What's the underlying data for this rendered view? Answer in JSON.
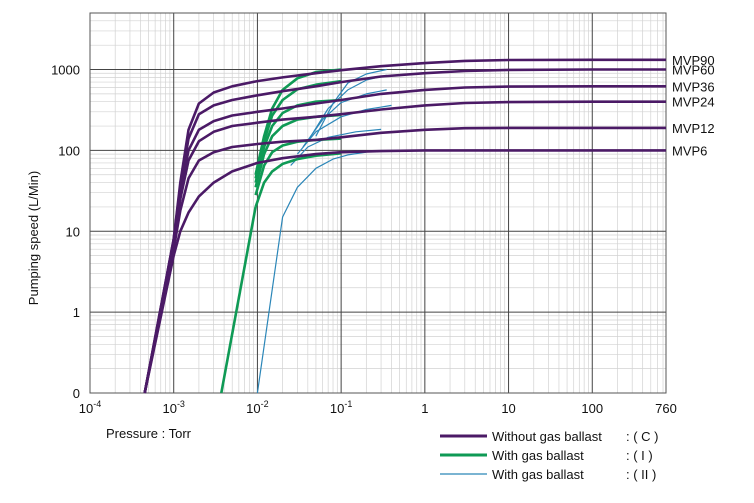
{
  "chart_data": {
    "type": "line",
    "xlabel": "Pressure : Torr",
    "ylabel": "Pumping speed (L/Min)",
    "x_scale": "log",
    "y_scale": "log",
    "xlim": [
      0.0001,
      760
    ],
    "ylim": [
      0.1,
      5000
    ],
    "x_ticks": [
      {
        "value": 0.0001,
        "base": "10",
        "exp": "-4"
      },
      {
        "value": 0.001,
        "base": "10",
        "exp": "-3"
      },
      {
        "value": 0.01,
        "base": "10",
        "exp": "-2"
      },
      {
        "value": 0.1,
        "base": "10",
        "exp": "-1"
      },
      {
        "value": 1,
        "base": "1",
        "exp": ""
      },
      {
        "value": 10,
        "base": "10",
        "exp": ""
      },
      {
        "value": 100,
        "base": "100",
        "exp": ""
      },
      {
        "value": 760,
        "base": "760",
        "exp": ""
      }
    ],
    "y_ticks": [
      {
        "value": 0.1,
        "label": "0"
      },
      {
        "value": 1,
        "label": "1"
      },
      {
        "value": 10,
        "label": "10"
      },
      {
        "value": 100,
        "label": "100"
      },
      {
        "value": 1000,
        "label": "1000"
      }
    ],
    "grid": true,
    "legend": {
      "position": "bottom-right",
      "entries": [
        {
          "key": "C",
          "label": "Without gas ballast",
          "tag": ": ( C )",
          "color": "#4b1a66"
        },
        {
          "key": "I",
          "label": "With gas ballast",
          "tag": ": ( I )",
          "color": "#0f9a55"
        },
        {
          "key": "II",
          "label": "With gas ballast",
          "tag": ": ( II )",
          "color": "#2b86b8"
        }
      ]
    },
    "series": [
      {
        "name": "MVP90",
        "c_points": [
          [
            0.00045,
            0.1
          ],
          [
            0.001,
            8
          ],
          [
            0.0012,
            40
          ],
          [
            0.0015,
            180
          ],
          [
            0.002,
            380
          ],
          [
            0.003,
            520
          ],
          [
            0.005,
            620
          ],
          [
            0.01,
            720
          ],
          [
            0.02,
            800
          ],
          [
            0.05,
            900
          ],
          [
            0.1,
            980
          ],
          [
            0.3,
            1100
          ],
          [
            1,
            1200
          ],
          [
            3,
            1280
          ],
          [
            10,
            1310
          ],
          [
            100,
            1320
          ],
          [
            760,
            1320
          ]
        ],
        "i_points": [
          [
            0.0095,
            50
          ],
          [
            0.012,
            150
          ],
          [
            0.015,
            330
          ],
          [
            0.02,
            560
          ],
          [
            0.03,
            780
          ],
          [
            0.05,
            930
          ],
          [
            0.1,
            1000
          ]
        ],
        "ii_points": [
          [
            0.05,
            150
          ],
          [
            0.08,
            380
          ],
          [
            0.12,
            680
          ],
          [
            0.2,
            880
          ],
          [
            0.35,
            1000
          ]
        ]
      },
      {
        "name": "MVP60",
        "c_points": [
          [
            0.00045,
            0.1
          ],
          [
            0.001,
            8
          ],
          [
            0.0012,
            35
          ],
          [
            0.0015,
            140
          ],
          [
            0.002,
            280
          ],
          [
            0.003,
            360
          ],
          [
            0.005,
            420
          ],
          [
            0.01,
            480
          ],
          [
            0.02,
            540
          ],
          [
            0.05,
            620
          ],
          [
            0.1,
            700
          ],
          [
            0.3,
            820
          ],
          [
            1,
            900
          ],
          [
            3,
            960
          ],
          [
            10,
            990
          ],
          [
            100,
            1000
          ],
          [
            760,
            1000
          ]
        ],
        "i_points": [
          [
            0.0095,
            45
          ],
          [
            0.012,
            130
          ],
          [
            0.015,
            270
          ],
          [
            0.02,
            420
          ],
          [
            0.03,
            570
          ],
          [
            0.05,
            650
          ],
          [
            0.1,
            720
          ]
        ],
        "ii_points": [
          [
            0.04,
            130
          ],
          [
            0.07,
            330
          ],
          [
            0.12,
            560
          ],
          [
            0.2,
            740
          ],
          [
            0.35,
            850
          ]
        ]
      },
      {
        "name": "MVP36",
        "c_points": [
          [
            0.00045,
            0.1
          ],
          [
            0.001,
            7
          ],
          [
            0.0012,
            30
          ],
          [
            0.0015,
            100
          ],
          [
            0.002,
            180
          ],
          [
            0.003,
            230
          ],
          [
            0.005,
            270
          ],
          [
            0.01,
            300
          ],
          [
            0.02,
            330
          ],
          [
            0.05,
            380
          ],
          [
            0.1,
            420
          ],
          [
            0.3,
            500
          ],
          [
            1,
            560
          ],
          [
            3,
            600
          ],
          [
            10,
            615
          ],
          [
            100,
            620
          ],
          [
            760,
            620
          ]
        ],
        "i_points": [
          [
            0.0095,
            40
          ],
          [
            0.012,
            110
          ],
          [
            0.015,
            200
          ],
          [
            0.02,
            290
          ],
          [
            0.03,
            360
          ],
          [
            0.05,
            400
          ],
          [
            0.1,
            420
          ]
        ],
        "ii_points": [
          [
            0.035,
            110
          ],
          [
            0.06,
            240
          ],
          [
            0.1,
            390
          ],
          [
            0.2,
            500
          ],
          [
            0.35,
            560
          ]
        ]
      },
      {
        "name": "MVP24",
        "c_points": [
          [
            0.00045,
            0.1
          ],
          [
            0.001,
            7
          ],
          [
            0.0012,
            25
          ],
          [
            0.0015,
            75
          ],
          [
            0.002,
            130
          ],
          [
            0.003,
            170
          ],
          [
            0.005,
            200
          ],
          [
            0.01,
            220
          ],
          [
            0.02,
            240
          ],
          [
            0.05,
            260
          ],
          [
            0.1,
            280
          ],
          [
            0.3,
            320
          ],
          [
            1,
            360
          ],
          [
            3,
            385
          ],
          [
            10,
            395
          ],
          [
            100,
            400
          ],
          [
            760,
            400
          ]
        ],
        "i_points": [
          [
            0.0095,
            35
          ],
          [
            0.012,
            90
          ],
          [
            0.015,
            150
          ],
          [
            0.02,
            200
          ],
          [
            0.03,
            240
          ],
          [
            0.05,
            260
          ],
          [
            0.1,
            275
          ]
        ],
        "ii_points": [
          [
            0.03,
            90
          ],
          [
            0.05,
            170
          ],
          [
            0.1,
            260
          ],
          [
            0.2,
            320
          ],
          [
            0.4,
            360
          ]
        ]
      },
      {
        "name": "MVP12",
        "c_points": [
          [
            0.00045,
            0.1
          ],
          [
            0.001,
            6
          ],
          [
            0.0012,
            18
          ],
          [
            0.0015,
            45
          ],
          [
            0.002,
            75
          ],
          [
            0.003,
            95
          ],
          [
            0.005,
            110
          ],
          [
            0.01,
            120
          ],
          [
            0.02,
            128
          ],
          [
            0.05,
            135
          ],
          [
            0.1,
            145
          ],
          [
            0.3,
            165
          ],
          [
            1,
            180
          ],
          [
            3,
            188
          ],
          [
            10,
            190
          ],
          [
            100,
            190
          ],
          [
            760,
            190
          ]
        ],
        "i_points": [
          [
            0.0095,
            28
          ],
          [
            0.012,
            65
          ],
          [
            0.015,
            95
          ],
          [
            0.02,
            115
          ],
          [
            0.03,
            128
          ],
          [
            0.05,
            135
          ],
          [
            0.1,
            140
          ]
        ],
        "ii_points": [
          [
            0.025,
            65
          ],
          [
            0.04,
            110
          ],
          [
            0.07,
            145
          ],
          [
            0.15,
            170
          ],
          [
            0.3,
            182
          ]
        ]
      },
      {
        "name": "MVP6",
        "c_points": [
          [
            0.00045,
            0.1
          ],
          [
            0.001,
            5
          ],
          [
            0.0012,
            10
          ],
          [
            0.0015,
            17
          ],
          [
            0.002,
            27
          ],
          [
            0.003,
            40
          ],
          [
            0.005,
            55
          ],
          [
            0.01,
            70
          ],
          [
            0.02,
            80
          ],
          [
            0.05,
            90
          ],
          [
            0.1,
            95
          ],
          [
            0.3,
            98
          ],
          [
            1,
            100
          ],
          [
            10,
            100
          ],
          [
            100,
            100
          ],
          [
            760,
            100
          ]
        ],
        "i_points": [
          [
            0.0095,
            20
          ],
          [
            0.012,
            40
          ],
          [
            0.015,
            55
          ],
          [
            0.02,
            68
          ],
          [
            0.03,
            78
          ],
          [
            0.05,
            86
          ],
          [
            0.1,
            92
          ]
        ],
        "ii_points": [
          [
            0.01,
            0.1
          ],
          [
            0.02,
            15
          ],
          [
            0.03,
            35
          ],
          [
            0.05,
            60
          ],
          [
            0.08,
            78
          ],
          [
            0.12,
            88
          ],
          [
            0.2,
            95
          ]
        ]
      }
    ]
  }
}
